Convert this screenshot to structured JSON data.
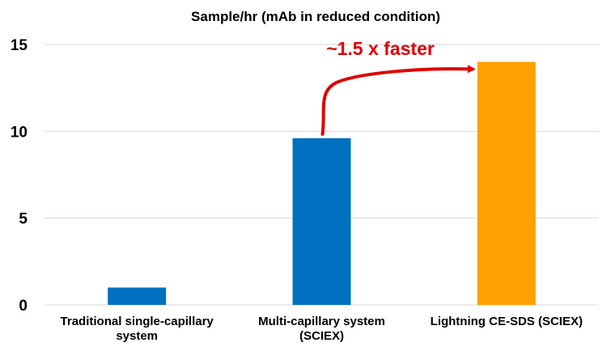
{
  "chart_data": {
    "type": "bar",
    "title": "Sample/hr (mAb in reduced condition)",
    "xlabel": "",
    "ylabel": "",
    "ylim": [
      0,
      15
    ],
    "yticks": [
      0,
      5,
      10,
      15
    ],
    "grid": true,
    "legend": "none",
    "categories": [
      [
        "Traditional single-capillary",
        "system"
      ],
      [
        "Multi-capillary system",
        "(SCIEX)"
      ],
      [
        "Lightning CE-SDS (SCIEX)"
      ]
    ],
    "values": [
      1,
      9.6,
      14
    ],
    "bar_colors": [
      "#0070c0",
      "#0070c0",
      "#ffa000"
    ],
    "annotation": {
      "text": "~1.5 x faster",
      "color": "#e00000",
      "from_category": 1,
      "to_category": 2
    }
  }
}
